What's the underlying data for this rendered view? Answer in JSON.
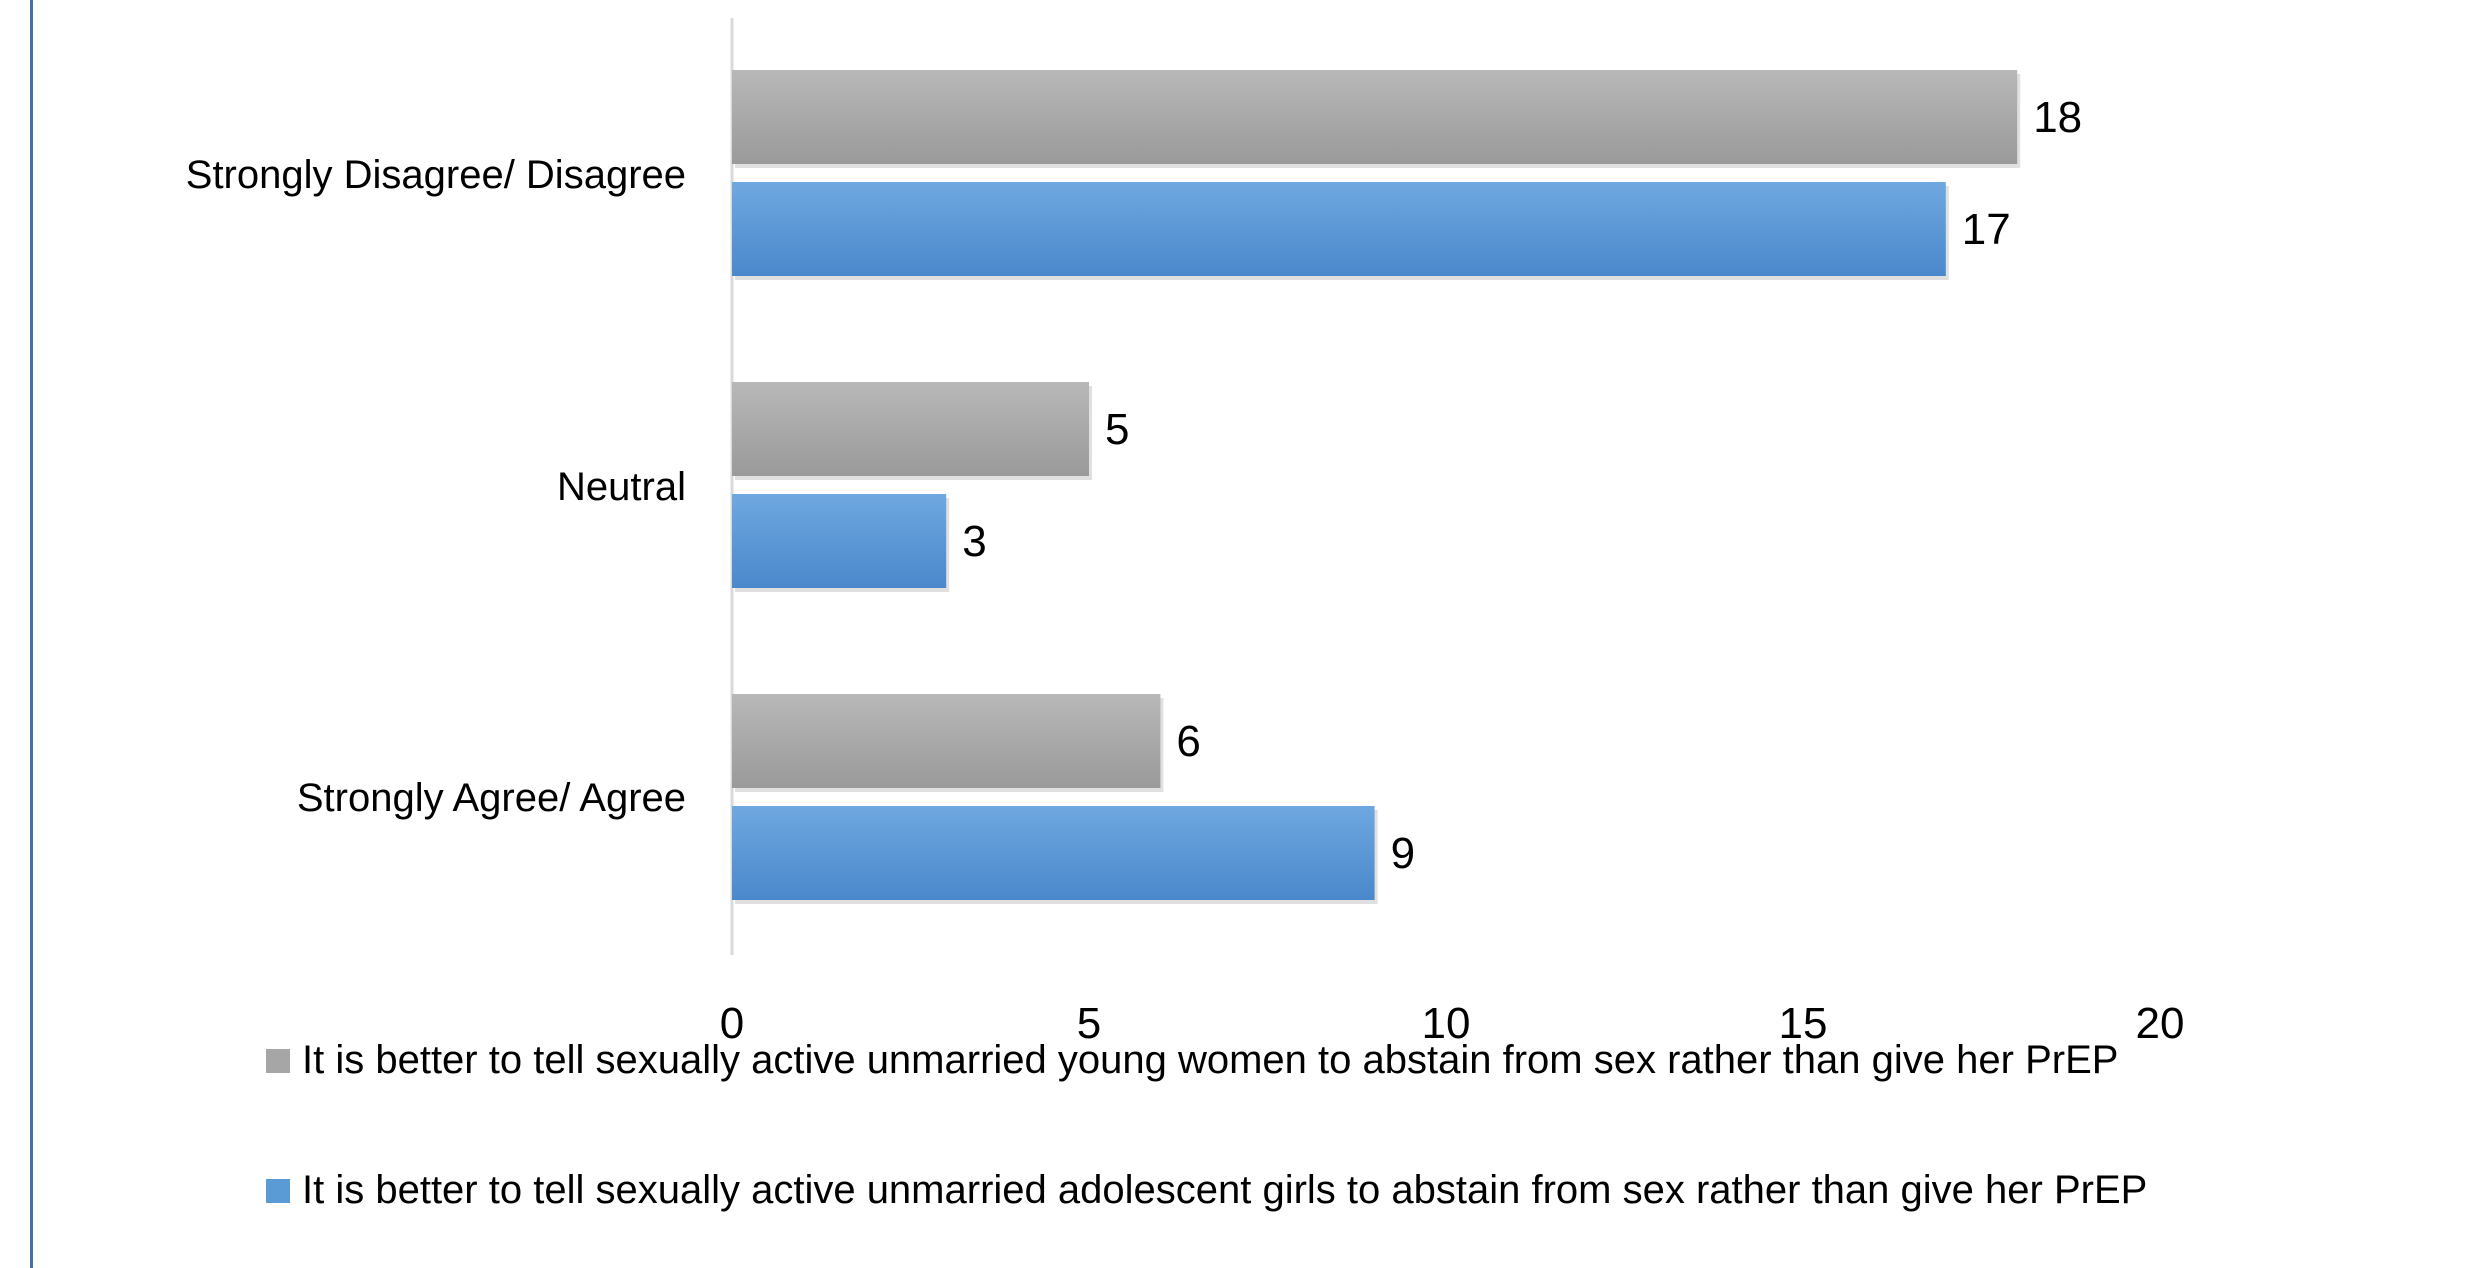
{
  "chart_data": {
    "type": "bar",
    "orientation": "horizontal",
    "categories": [
      "Strongly Disagree/ Disagree",
      "Neutral",
      "Strongly Agree/ Agree"
    ],
    "series": [
      {
        "name": "It is better to tell sexually active unmarried young women to abstain from sex rather than give her PrEP",
        "values": [
          18,
          5,
          6
        ],
        "color": "#a6a6a6"
      },
      {
        "name": "It is better to tell sexually active unmarried adolescent girls to abstain from sex rather than give her PrEP",
        "values": [
          17,
          3,
          9
        ],
        "color": "#5b9bd5"
      }
    ],
    "x_ticks": [
      "0",
      "5",
      "10",
      "15",
      "20"
    ],
    "xlim": [
      0,
      20
    ],
    "grid": false,
    "legend_position": "bottom",
    "data_labels": true,
    "title": "",
    "xlabel": "",
    "ylabel": ""
  },
  "colors": {
    "frame_border": "#4a6fa5",
    "axis_line": "#d9d9d9"
  }
}
